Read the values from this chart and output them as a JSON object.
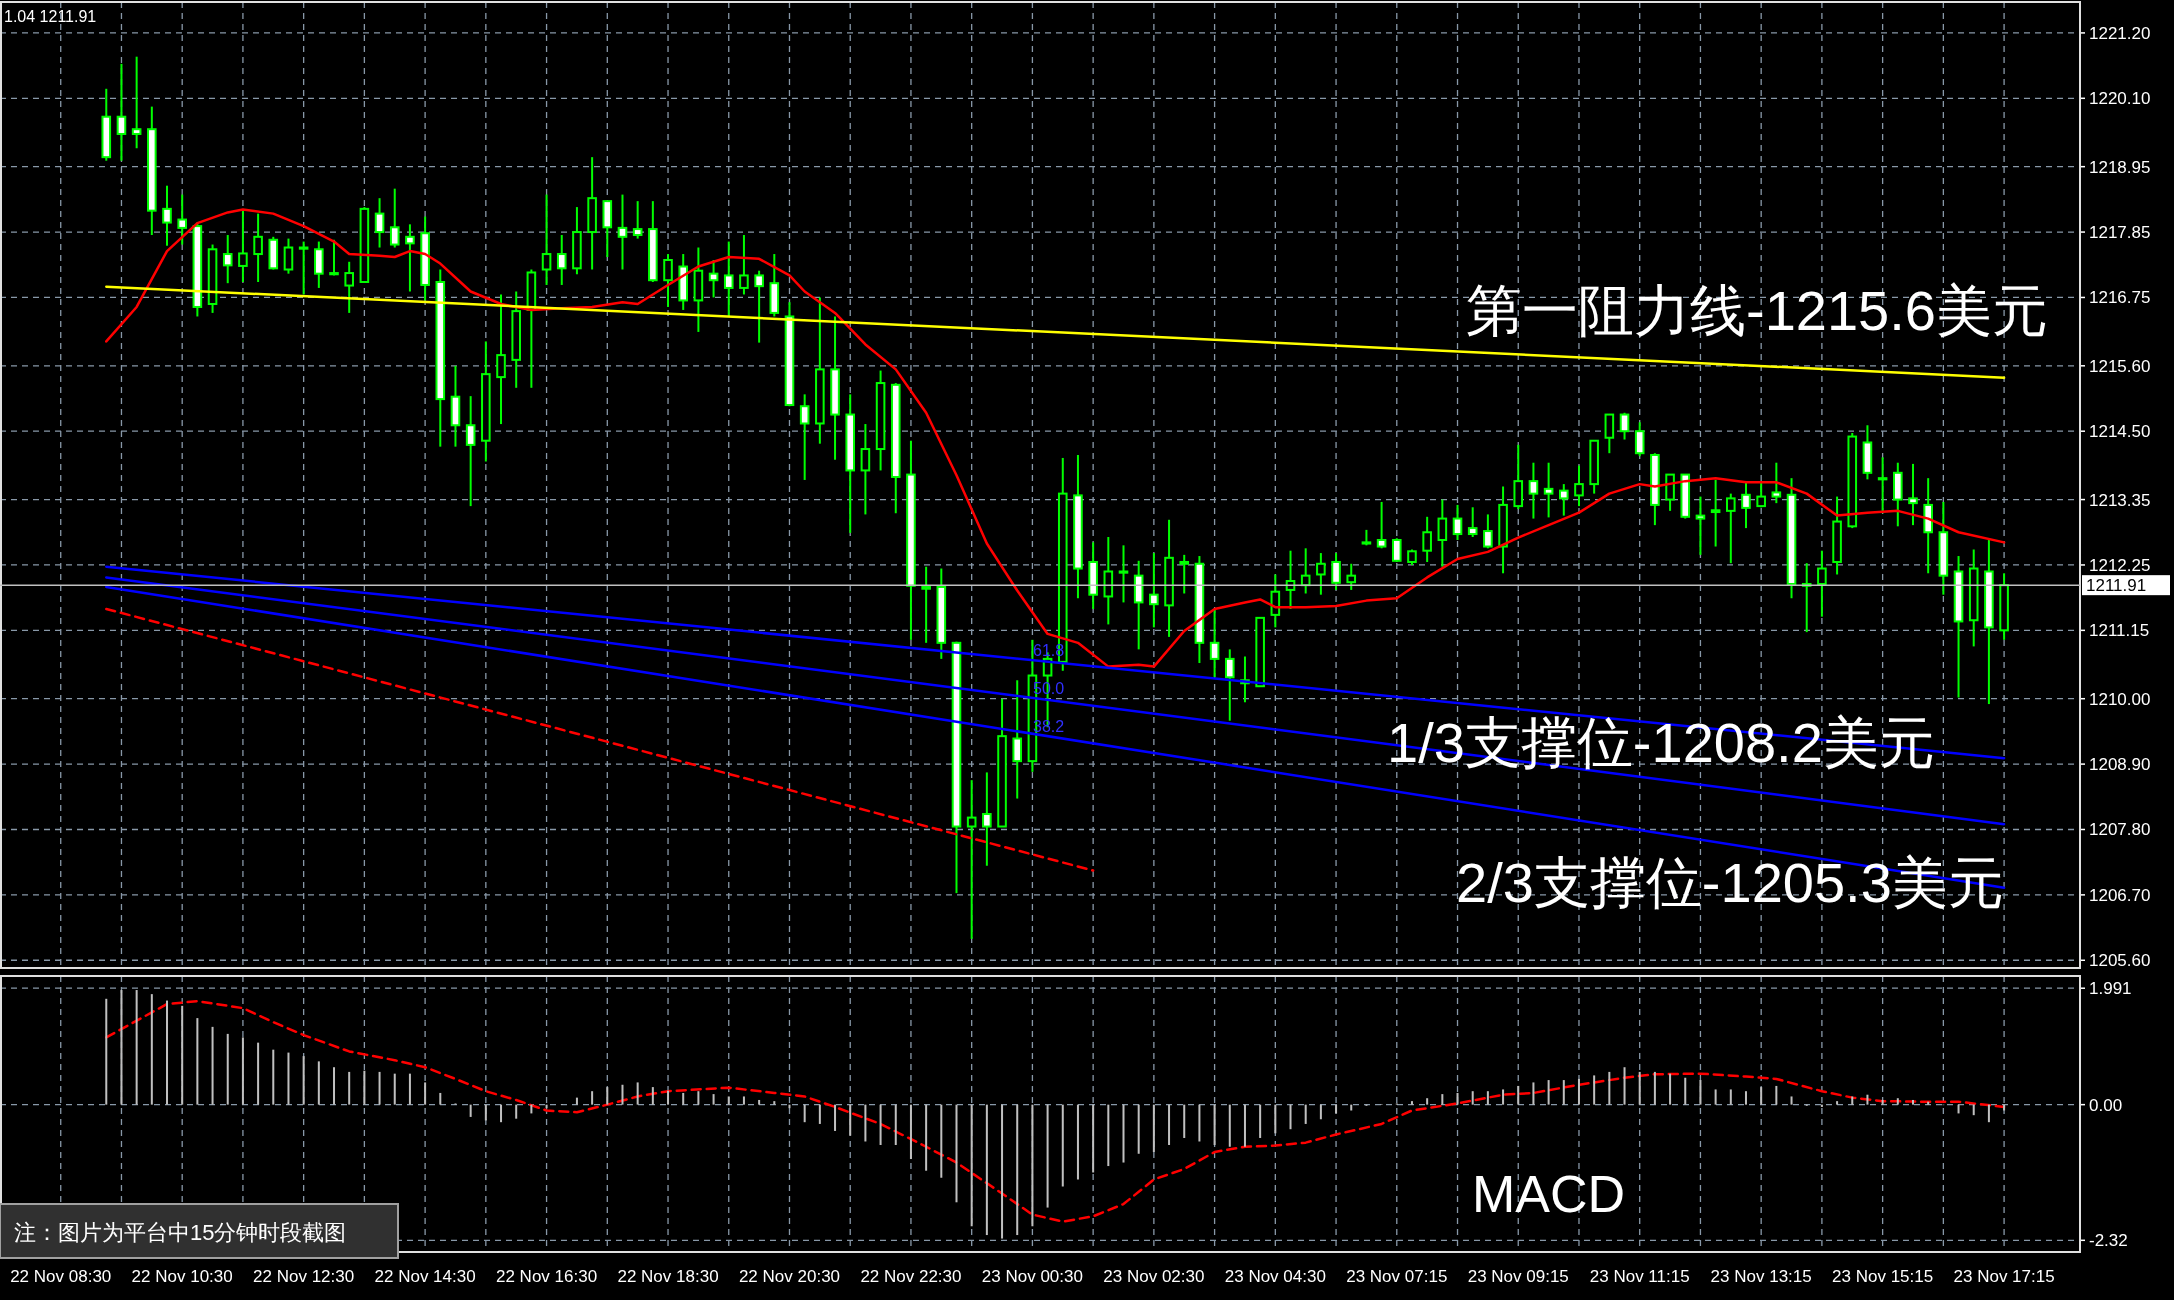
{
  "chart_data": [
    {
      "type": "candlestick",
      "tick_labels": "y",
      "grid": true,
      "color": "#00ff00",
      "categories": [
        null,
        null,
        null,
        null,
        null,
        null,
        null,
        null,
        null,
        null,
        null,
        null,
        null,
        null,
        null,
        null,
        null,
        null,
        null,
        null,
        null,
        null,
        null,
        null,
        null,
        null,
        null,
        null,
        null,
        null,
        null,
        null,
        null,
        null,
        null,
        null,
        null,
        null,
        null,
        null,
        null,
        null,
        null,
        null,
        null,
        null,
        null,
        null,
        null,
        null,
        null,
        null,
        null,
        null,
        null,
        null,
        null,
        null,
        null,
        null,
        null,
        null,
        null,
        null,
        null,
        null,
        null,
        null,
        null,
        null,
        null,
        null,
        null,
        null,
        null,
        null,
        null,
        null,
        null,
        null,
        null,
        null,
        null,
        null,
        null,
        null,
        null,
        null,
        null,
        null,
        null,
        null,
        null,
        null,
        null,
        null,
        null,
        null,
        null,
        null,
        null,
        null,
        null,
        null,
        null,
        null,
        null,
        null,
        null,
        null,
        null,
        null,
        null,
        null,
        null,
        null,
        null,
        null,
        null,
        null,
        null,
        null,
        null,
        null,
        null,
        null,
        null,
        null,
        null
      ],
      "ohlc": [
        null,
        null,
        null,
        [
          1219.79,
          1220.26,
          1219.05,
          1219.11
        ],
        [
          1219.79,
          1220.68,
          1219.05,
          1219.5
        ],
        [
          1219.58,
          1220.8,
          1219.26,
          1219.5
        ],
        [
          1219.58,
          1219.96,
          1217.8,
          1218.21
        ],
        [
          1218.24,
          1218.63,
          1217.62,
          1218.01
        ],
        [
          1218.06,
          1218.48,
          1217.64,
          1217.92
        ],
        [
          1217.95,
          1218.01,
          1216.43,
          1216.59
        ],
        [
          1216.64,
          1217.64,
          1216.49,
          1217.56
        ],
        [
          1217.48,
          1217.8,
          1216.99,
          1217.29
        ],
        [
          1217.28,
          1218.21,
          1217.01,
          1217.49
        ],
        [
          1217.48,
          1218.16,
          1217.01,
          1217.77
        ],
        [
          1217.72,
          1217.77,
          1217.22,
          1217.24
        ],
        [
          1217.22,
          1217.74,
          1217.15,
          1217.59
        ],
        [
          1217.57,
          1217.69,
          1216.8,
          1217.59
        ],
        [
          1217.56,
          1217.69,
          1216.91,
          1217.15
        ],
        [
          1217.16,
          1217.72,
          1217.12,
          1217.14
        ],
        [
          1216.95,
          1217.35,
          1216.49,
          1217.16
        ],
        [
          1217.01,
          1218.27,
          1217.01,
          1218.24
        ],
        [
          1218.16,
          1218.42,
          1217.59,
          1217.85
        ],
        [
          1217.93,
          1218.58,
          1217.59,
          1217.64
        ],
        [
          1217.77,
          1217.98,
          1216.85,
          1217.66
        ],
        [
          1217.83,
          1218.11,
          1216.7,
          1216.96
        ],
        [
          1217.01,
          1217.22,
          1214.24,
          1215.04
        ],
        [
          1215.08,
          1215.6,
          1214.24,
          1214.6
        ],
        [
          1214.6,
          1215.09,
          1213.24,
          1214.27
        ],
        [
          1214.34,
          1216.01,
          1213.99,
          1215.46
        ],
        [
          1215.41,
          1216.8,
          1214.62,
          1215.78
        ],
        [
          1215.7,
          1216.85,
          1215.23,
          1216.52
        ],
        [
          1216.54,
          1217.22,
          1215.23,
          1217.17
        ],
        [
          1217.22,
          1218.48,
          1216.96,
          1217.48
        ],
        [
          1217.48,
          1217.8,
          1216.96,
          1217.24
        ],
        [
          1217.24,
          1218.27,
          1217.14,
          1217.85
        ],
        [
          1217.85,
          1219.11,
          1217.22,
          1218.42
        ],
        [
          1218.37,
          1218.37,
          1217.43,
          1217.93
        ],
        [
          1217.92,
          1218.48,
          1217.22,
          1217.77
        ],
        [
          1217.9,
          1218.37,
          1217.74,
          1217.8
        ],
        [
          1217.9,
          1218.37,
          1217.01,
          1217.04
        ],
        [
          1217.04,
          1217.48,
          1216.59,
          1217.38
        ],
        [
          1217.27,
          1217.48,
          1216.54,
          1216.7
        ],
        [
          1216.7,
          1217.59,
          1216.17,
          1217.2
        ],
        [
          1217.15,
          1217.38,
          1216.75,
          1217.04
        ],
        [
          1217.12,
          1217.69,
          1216.43,
          1216.91
        ],
        [
          1216.91,
          1217.8,
          1216.8,
          1217.12
        ],
        [
          1217.12,
          1217.2,
          1215.99,
          1216.94
        ],
        [
          1216.99,
          1217.48,
          1216.43,
          1216.49
        ],
        [
          1216.43,
          1216.67,
          1214.92,
          1214.94
        ],
        [
          1214.92,
          1215.12,
          1213.68,
          1214.63
        ],
        [
          1214.63,
          1216.75,
          1214.29,
          1215.54
        ],
        [
          1215.54,
          1216.43,
          1214.02,
          1214.78
        ],
        [
          1214.78,
          1215.12,
          1212.79,
          1213.84
        ],
        [
          1213.84,
          1214.62,
          1213.1,
          1214.2
        ],
        [
          1214.2,
          1215.52,
          1213.84,
          1215.31
        ],
        [
          1215.28,
          1215.31,
          1213.12,
          1213.73
        ],
        [
          1213.77,
          1214.34,
          1210.99,
          1211.9
        ],
        [
          1211.88,
          1212.22,
          1210.94,
          1211.85
        ],
        [
          1211.88,
          1212.19,
          1210.67,
          1210.94
        ],
        [
          1210.94,
          1210.96,
          1206.73,
          1207.85
        ],
        [
          1207.85,
          1208.63,
          1205.96,
          1208.0
        ],
        [
          1208.06,
          1208.76,
          1207.19,
          1207.85
        ],
        [
          1207.85,
          1210.0,
          1207.85,
          1209.37
        ],
        [
          1209.33,
          1210.31,
          1208.32,
          1208.95
        ],
        [
          1208.95,
          1210.99,
          1208.77,
          1210.39
        ],
        [
          1210.39,
          1210.78,
          1209.52,
          1210.67
        ],
        [
          1210.62,
          1214.05,
          1210.47,
          1213.45
        ],
        [
          1213.42,
          1214.1,
          1211.69,
          1212.19
        ],
        [
          1212.3,
          1212.63,
          1211.51,
          1211.75
        ],
        [
          1211.72,
          1212.72,
          1211.25,
          1212.14
        ],
        [
          1212.12,
          1212.58,
          1211.62,
          1212.14
        ],
        [
          1212.07,
          1212.32,
          1210.83,
          1211.62
        ],
        [
          1211.75,
          1212.45,
          1211.2,
          1211.59
        ],
        [
          1211.57,
          1213.01,
          1211.04,
          1212.37
        ],
        [
          1212.27,
          1212.42,
          1211.77,
          1212.3
        ],
        [
          1212.27,
          1212.4,
          1210.6,
          1210.94
        ],
        [
          1210.94,
          1211.51,
          1210.36,
          1210.67
        ],
        [
          1210.67,
          1210.83,
          1209.63,
          1210.36
        ],
        [
          1210.31,
          1210.71,
          1209.94,
          1210.26
        ],
        [
          1210.21,
          1211.36,
          1210.21,
          1211.36
        ],
        [
          1211.41,
          1212.09,
          1211.2,
          1211.8
        ],
        [
          1211.83,
          1212.49,
          1211.51,
          1211.98
        ],
        [
          1211.91,
          1212.53,
          1211.77,
          1212.07
        ],
        [
          1212.09,
          1212.45,
          1211.75,
          1212.27
        ],
        [
          1212.3,
          1212.45,
          1211.83,
          1211.95
        ],
        [
          1211.96,
          1212.27,
          1211.83,
          1212.07
        ],
        [
          1212.61,
          1212.84,
          1212.58,
          1212.63
        ],
        [
          1212.67,
          1213.31,
          1212.53,
          1212.56
        ],
        [
          1212.67,
          1212.7,
          1212.3,
          1212.32
        ],
        [
          1212.3,
          1212.51,
          1212.25,
          1212.48
        ],
        [
          1212.49,
          1213.06,
          1212.3,
          1212.8
        ],
        [
          1212.67,
          1213.35,
          1212.22,
          1213.03
        ],
        [
          1213.03,
          1213.26,
          1212.67,
          1212.77
        ],
        [
          1212.87,
          1213.22,
          1212.72,
          1212.77
        ],
        [
          1212.82,
          1213.1,
          1212.53,
          1212.56
        ],
        [
          1212.56,
          1213.57,
          1212.11,
          1213.26
        ],
        [
          1213.24,
          1214.27,
          1213.19,
          1213.66
        ],
        [
          1213.66,
          1213.97,
          1213.03,
          1213.45
        ],
        [
          1213.53,
          1213.97,
          1213.05,
          1213.45
        ],
        [
          1213.5,
          1213.61,
          1213.08,
          1213.37
        ],
        [
          1213.42,
          1213.92,
          1213.24,
          1213.61
        ],
        [
          1213.61,
          1214.34,
          1213.45,
          1214.34
        ],
        [
          1214.39,
          1214.79,
          1214.13,
          1214.78
        ],
        [
          1214.78,
          1214.81,
          1214.36,
          1214.5
        ],
        [
          1214.5,
          1214.65,
          1214.08,
          1214.13
        ],
        [
          1214.1,
          1214.13,
          1212.92,
          1213.26
        ],
        [
          1213.35,
          1213.77,
          1213.16,
          1213.77
        ],
        [
          1213.77,
          1213.78,
          1213.03,
          1213.06
        ],
        [
          1213.08,
          1213.4,
          1212.42,
          1213.03
        ],
        [
          1213.14,
          1213.68,
          1212.56,
          1213.17
        ],
        [
          1213.16,
          1213.45,
          1212.28,
          1213.37
        ],
        [
          1213.43,
          1213.66,
          1212.87,
          1213.21
        ],
        [
          1213.24,
          1213.64,
          1213.22,
          1213.4
        ],
        [
          1213.47,
          1213.97,
          1213.29,
          1213.4
        ],
        [
          1213.43,
          1213.71,
          1211.69,
          1211.93
        ],
        [
          1211.93,
          1212.28,
          1211.12,
          1211.9
        ],
        [
          1211.93,
          1212.49,
          1211.38,
          1212.19
        ],
        [
          1212.3,
          1213.4,
          1212.09,
          1212.98
        ],
        [
          1212.9,
          1214.47,
          1212.87,
          1214.41
        ],
        [
          1214.31,
          1214.6,
          1213.69,
          1213.8
        ],
        [
          1213.71,
          1214.06,
          1213.12,
          1213.69
        ],
        [
          1213.8,
          1213.97,
          1212.9,
          1213.35
        ],
        [
          1213.37,
          1213.95,
          1212.92,
          1213.29
        ],
        [
          1213.26,
          1213.71,
          1212.11,
          1212.8
        ],
        [
          1212.8,
          1213.31,
          1211.75,
          1212.07
        ],
        [
          1212.14,
          1212.4,
          1210.02,
          1211.3
        ],
        [
          1211.32,
          1212.51,
          1210.88,
          1212.19
        ],
        [
          1212.14,
          1212.67,
          1209.91,
          1211.2
        ],
        [
          1211.15,
          1212.11,
          1210.99,
          1211.91
        ]
      ],
      "ylim": [
        1205.47,
        1221.72
      ],
      "yticks": [
        {
          "value": 1221.2,
          "label": "1221.20"
        },
        {
          "value": 1220.1,
          "label": "1220.10"
        },
        {
          "value": 1218.95,
          "label": "1218.95"
        },
        {
          "value": 1217.85,
          "label": "1217.85"
        },
        {
          "value": 1216.75,
          "label": "1216.75"
        },
        {
          "value": 1215.6,
          "label": "1215.60"
        },
        {
          "value": 1214.5,
          "label": "1214.50"
        },
        {
          "value": 1213.35,
          "label": "1213.35"
        },
        {
          "value": 1212.25,
          "label": "1212.25"
        },
        {
          "value": 1211.15,
          "label": "1211.15"
        },
        {
          "value": 1210,
          "label": "1210.00"
        },
        {
          "value": 1208.9,
          "label": "1208.90"
        },
        {
          "value": 1207.8,
          "label": "1207.80"
        },
        {
          "value": 1206.7,
          "label": "1206.70"
        },
        {
          "value": 1205.6,
          "label": "1205.60"
        }
      ],
      "ref_lines": [
        {
          "axis": "y",
          "value": 1211.91,
          "label": "1211.91",
          "color": "#c0c0c0"
        }
      ],
      "series": [
        {
          "type": "line",
          "color": "#ff0000",
          "line_style": "solid",
          "values": [
            null,
            null,
            null,
            1216.01,
            null,
            1216.59,
            null,
            1217.53,
            null,
            1218.0,
            null,
            1218.18,
            1218.23,
            null,
            1218.16,
            null,
            1217.95,
            null,
            1217.69,
            1217.48,
            null,
            1217.45,
            1217.43,
            1217.53,
            1217.48,
            1217.32,
            null,
            1216.85,
            null,
            1216.64,
            null,
            1216.54,
            null,
            1216.57,
            null,
            1216.59,
            null,
            1216.67,
            1216.64,
            null,
            1216.96,
            null,
            1217.27,
            null,
            1217.43,
            null,
            1217.4,
            null,
            1217.12,
            1216.85,
            null,
            1216.49,
            null,
            1215.96,
            null,
            1215.54,
            null,
            1214.81,
            null,
            1213.76,
            null,
            1212.61,
            null,
            1211.82,
            null,
            1211.09,
            null,
            1210.94,
            null,
            1210.54,
            null,
            1210.57,
            1210.54,
            null,
            1211.14,
            null,
            1211.51,
            null,
            1211.62,
            1211.67,
            1211.54,
            null,
            1211.54,
            null,
            1211.56,
            null,
            1211.65,
            null,
            1211.69,
            null,
            1212.04,
            null,
            1212.35,
            null,
            1212.47,
            null,
            1212.71,
            null,
            1212.92,
            null,
            1213.13,
            null,
            1213.45,
            null,
            1213.61,
            1213.57,
            null,
            1213.66,
            null,
            1213.71,
            null,
            1213.64,
            null,
            1213.64,
            null,
            1213.45,
            null,
            1213.08,
            null,
            1213.13,
            null,
            1213.16,
            null,
            1213.03,
            null,
            1212.8,
            null,
            null,
            1212.63
          ]
        },
        {
          "type": "line",
          "color": "#ffff00",
          "line_style": "solid",
          "values": [
            null,
            null,
            null,
            1216.93,
            null,
            null,
            null,
            null,
            null,
            null,
            null,
            null,
            null,
            null,
            null,
            null,
            null,
            null,
            null,
            null,
            null,
            null,
            null,
            null,
            null,
            null,
            null,
            null,
            null,
            null,
            null,
            null,
            null,
            null,
            null,
            null,
            null,
            null,
            null,
            null,
            null,
            null,
            null,
            null,
            null,
            null,
            null,
            null,
            null,
            null,
            null,
            null,
            null,
            null,
            null,
            null,
            null,
            null,
            null,
            null,
            null,
            null,
            null,
            null,
            null,
            null,
            null,
            null,
            null,
            null,
            null,
            null,
            null,
            null,
            null,
            null,
            null,
            null,
            null,
            null,
            null,
            null,
            null,
            null,
            null,
            null,
            null,
            null,
            null,
            null,
            null,
            null,
            null,
            null,
            null,
            null,
            null,
            null,
            null,
            null,
            null,
            null,
            null,
            null,
            null,
            null,
            null,
            null,
            null,
            null,
            null,
            null,
            null,
            null,
            null,
            null,
            null,
            null,
            null,
            null,
            null,
            null,
            null,
            null,
            null,
            null,
            null,
            null,
            1215.4
          ]
        },
        {
          "type": "line",
          "color": "#0000ff",
          "line_style": "solid",
          "values": [
            null,
            null,
            null,
            1212.22,
            null,
            null,
            null,
            null,
            null,
            null,
            null,
            null,
            null,
            null,
            null,
            null,
            null,
            null,
            null,
            null,
            null,
            null,
            null,
            null,
            null,
            null,
            null,
            null,
            null,
            null,
            null,
            null,
            null,
            null,
            null,
            null,
            null,
            null,
            null,
            null,
            null,
            null,
            null,
            null,
            null,
            null,
            null,
            null,
            null,
            null,
            null,
            null,
            null,
            null,
            null,
            null,
            null,
            null,
            null,
            null,
            null,
            null,
            null,
            null,
            null,
            null,
            null,
            null,
            null,
            null,
            null,
            null,
            null,
            null,
            null,
            null,
            null,
            null,
            null,
            null,
            null,
            null,
            null,
            null,
            null,
            null,
            null,
            null,
            null,
            null,
            null,
            null,
            null,
            null,
            null,
            null,
            null,
            null,
            null,
            null,
            null,
            null,
            null,
            null,
            null,
            null,
            null,
            null,
            null,
            null,
            null,
            null,
            null,
            null,
            null,
            null,
            null,
            null,
            null,
            null,
            null,
            null,
            null,
            null,
            null,
            null,
            null,
            null,
            1209.0
          ]
        },
        {
          "type": "line",
          "color": "#0000ff",
          "line_style": "solid",
          "values": [
            null,
            null,
            null,
            1212.04,
            null,
            null,
            null,
            null,
            null,
            null,
            null,
            null,
            null,
            null,
            null,
            null,
            null,
            null,
            null,
            null,
            null,
            null,
            null,
            null,
            null,
            null,
            null,
            null,
            null,
            null,
            null,
            null,
            null,
            null,
            null,
            null,
            null,
            null,
            null,
            null,
            null,
            null,
            null,
            null,
            null,
            null,
            null,
            null,
            null,
            null,
            null,
            null,
            null,
            null,
            null,
            null,
            null,
            null,
            null,
            null,
            null,
            null,
            null,
            null,
            null,
            null,
            null,
            null,
            null,
            null,
            null,
            null,
            null,
            null,
            null,
            null,
            null,
            null,
            null,
            null,
            null,
            null,
            null,
            null,
            null,
            null,
            null,
            null,
            null,
            null,
            null,
            null,
            null,
            null,
            null,
            null,
            null,
            null,
            null,
            null,
            null,
            null,
            null,
            null,
            null,
            null,
            null,
            null,
            null,
            null,
            null,
            null,
            null,
            null,
            null,
            null,
            null,
            null,
            null,
            null,
            null,
            null,
            null,
            null,
            null,
            null,
            null,
            null,
            1207.89
          ]
        },
        {
          "type": "line",
          "color": "#0000ff",
          "line_style": "solid",
          "values": [
            null,
            null,
            null,
            1211.88,
            null,
            null,
            null,
            null,
            null,
            null,
            null,
            null,
            null,
            null,
            null,
            null,
            null,
            null,
            null,
            null,
            null,
            null,
            null,
            null,
            null,
            null,
            null,
            null,
            null,
            null,
            null,
            null,
            null,
            null,
            null,
            null,
            null,
            null,
            null,
            null,
            null,
            null,
            null,
            null,
            null,
            null,
            null,
            null,
            null,
            null,
            null,
            null,
            null,
            null,
            null,
            null,
            null,
            null,
            null,
            null,
            null,
            null,
            null,
            null,
            null,
            null,
            null,
            null,
            null,
            null,
            null,
            null,
            null,
            null,
            null,
            null,
            null,
            null,
            null,
            null,
            null,
            null,
            null,
            null,
            null,
            null,
            null,
            null,
            null,
            null,
            null,
            null,
            null,
            null,
            null,
            null,
            null,
            null,
            null,
            null,
            null,
            null,
            null,
            null,
            null,
            null,
            null,
            null,
            null,
            null,
            null,
            null,
            null,
            null,
            null,
            null,
            null,
            null,
            null,
            null,
            null,
            null,
            null,
            null,
            null,
            null,
            null,
            null,
            1206.82
          ]
        },
        {
          "type": "line",
          "color": "#ff0000",
          "line_style": "dashed",
          "values": [
            null,
            null,
            null,
            1211.51,
            null,
            null,
            null,
            null,
            null,
            null,
            null,
            null,
            null,
            null,
            null,
            null,
            null,
            null,
            null,
            null,
            null,
            null,
            null,
            null,
            null,
            null,
            null,
            null,
            null,
            null,
            null,
            null,
            null,
            null,
            null,
            null,
            null,
            null,
            null,
            null,
            null,
            null,
            null,
            null,
            null,
            null,
            null,
            null,
            null,
            null,
            null,
            null,
            null,
            null,
            null,
            null,
            null,
            null,
            null,
            null,
            null,
            null,
            null,
            null,
            null,
            null,
            null,
            null,
            1207.11,
            null,
            null,
            null,
            null,
            null,
            null,
            null,
            null,
            null,
            null,
            null,
            null,
            null,
            null,
            null,
            null,
            null,
            null,
            null,
            null,
            null,
            null,
            null,
            null,
            null,
            null,
            null,
            null,
            null,
            null,
            null,
            null,
            null,
            null,
            null,
            null,
            null,
            null,
            null,
            null,
            null,
            null,
            null,
            null,
            null,
            null,
            null,
            null,
            null,
            null,
            null,
            null,
            null,
            null,
            null,
            null,
            null,
            null,
            null,
            null
          ]
        }
      ],
      "annotations": [
        "1.04 1211.91",
        "第一阻力线-1215.6美元",
        "1/3支撑位-1208.2美元",
        "2/3支撑位-1205.3美元",
        "61.8",
        "50.0",
        "38.2"
      ]
    },
    {
      "type": "bar",
      "grid": true,
      "categories": [
        "22 Nov 08:30",
        null,
        null,
        null,
        null,
        null,
        null,
        null,
        "22 Nov 10:30",
        null,
        null,
        null,
        null,
        null,
        null,
        null,
        "22 Nov 12:30",
        null,
        null,
        null,
        null,
        null,
        null,
        null,
        "22 Nov 14:30",
        null,
        null,
        null,
        null,
        null,
        null,
        null,
        "22 Nov 16:30",
        null,
        null,
        null,
        null,
        null,
        null,
        null,
        "22 Nov 18:30",
        null,
        null,
        null,
        null,
        null,
        null,
        null,
        "22 Nov 20:30",
        null,
        null,
        null,
        null,
        null,
        null,
        null,
        "22 Nov 22:30",
        null,
        null,
        null,
        null,
        null,
        null,
        null,
        "23 Nov 00:30",
        null,
        null,
        null,
        null,
        null,
        null,
        null,
        "23 Nov 02:30",
        null,
        null,
        null,
        null,
        null,
        null,
        null,
        "23 Nov 04:30",
        null,
        null,
        null,
        null,
        null,
        null,
        null,
        "23 Nov 07:15",
        null,
        null,
        null,
        null,
        null,
        null,
        null,
        "23 Nov 09:15",
        null,
        null,
        null,
        null,
        null,
        null,
        null,
        "23 Nov 11:15",
        null,
        null,
        null,
        null,
        null,
        null,
        null,
        "23 Nov 13:15",
        null,
        null,
        null,
        null,
        null,
        null,
        null,
        "23 Nov 15:15",
        null,
        null,
        null,
        null,
        null,
        null,
        null,
        "23 Nov 17:15"
      ],
      "ylim": [
        -2.52,
        2.2
      ],
      "yticks": [
        1.991,
        {
          "value": 0,
          "label": "0.00"
        },
        -2.32
      ],
      "series": [
        {
          "color": "#c0c0c0",
          "values": [
            null,
            null,
            null,
            1.81,
            1.96,
            1.96,
            1.89,
            1.78,
            1.69,
            1.48,
            1.33,
            1.21,
            1.15,
            1.06,
            0.94,
            0.89,
            0.83,
            0.74,
            0.64,
            0.56,
            0.58,
            0.56,
            0.53,
            0.53,
            0.38,
            0.2,
            0.02,
            -0.21,
            -0.27,
            -0.3,
            -0.24,
            -0.15,
            -0.06,
            0.01,
            0.12,
            0.23,
            0.3,
            0.34,
            0.38,
            0.3,
            0.24,
            0.2,
            0.23,
            0.18,
            0.14,
            0.14,
            0.08,
            0.06,
            -0.06,
            -0.3,
            -0.33,
            -0.45,
            -0.53,
            -0.63,
            -0.69,
            -0.69,
            -0.93,
            -1.13,
            -1.25,
            -1.67,
            -2.08,
            -2.23,
            -2.29,
            -2.23,
            -2.08,
            -1.76,
            -1.4,
            -1.28,
            -1.16,
            -1.05,
            -0.99,
            -0.84,
            -0.81,
            -0.69,
            -0.57,
            -0.63,
            -0.69,
            -0.72,
            -0.72,
            -0.57,
            -0.49,
            -0.42,
            -0.33,
            -0.25,
            -0.15,
            -0.1,
            -0.02,
            0.01,
            0.02,
            0.06,
            0.11,
            0.18,
            0.2,
            0.23,
            0.23,
            0.26,
            0.32,
            0.38,
            0.42,
            0.42,
            0.44,
            0.5,
            0.56,
            0.64,
            0.56,
            0.56,
            0.53,
            0.46,
            0.42,
            0.26,
            0.26,
            0.23,
            0.3,
            0.32,
            0.14,
            -0.02,
            -0.04,
            0.06,
            0.14,
            0.17,
            0.08,
            0.11,
            0.08,
            0.05,
            0.0,
            -0.15,
            -0.18,
            -0.3,
            -0.1
          ]
        },
        {
          "type": "line",
          "color": "#ff0000",
          "line_style": "dashed",
          "values": [
            null,
            null,
            null,
            1.15,
            null,
            null,
            null,
            1.72,
            null,
            1.77,
            null,
            null,
            1.65,
            null,
            1.41,
            null,
            1.19,
            null,
            null,
            0.91,
            null,
            null,
            0.76,
            null,
            0.64,
            null,
            0.44,
            null,
            0.23,
            null,
            0.08,
            null,
            -0.1,
            null,
            -0.13,
            null,
            0.0,
            null,
            0.14,
            null,
            0.23,
            null,
            null,
            null,
            0.29,
            null,
            null,
            0.2,
            null,
            0.14,
            null,
            -0.04,
            null,
            null,
            -0.33,
            null,
            null,
            -0.72,
            null,
            -0.99,
            null,
            null,
            -1.52,
            null,
            -1.88,
            null,
            -2.0,
            null,
            -1.91,
            null,
            -1.7,
            null,
            -1.28,
            null,
            -1.1,
            null,
            -0.81,
            null,
            -0.72,
            null,
            -0.7,
            null,
            -0.65,
            null,
            -0.51,
            null,
            null,
            -0.33,
            null,
            -0.1,
            null,
            null,
            0.02,
            null,
            null,
            0.17,
            null,
            0.2,
            null,
            null,
            0.34,
            null,
            null,
            0.46,
            null,
            0.52,
            null,
            null,
            0.53,
            null,
            null,
            0.48,
            null,
            0.44,
            null,
            null,
            0.23,
            null,
            0.12,
            null,
            0.06,
            null,
            null,
            0.05,
            null,
            0.05,
            null,
            null,
            -0.04
          ]
        }
      ],
      "annotations": [
        "MACD",
        "注：图片为平台中15分钟时段截图"
      ]
    }
  ]
}
